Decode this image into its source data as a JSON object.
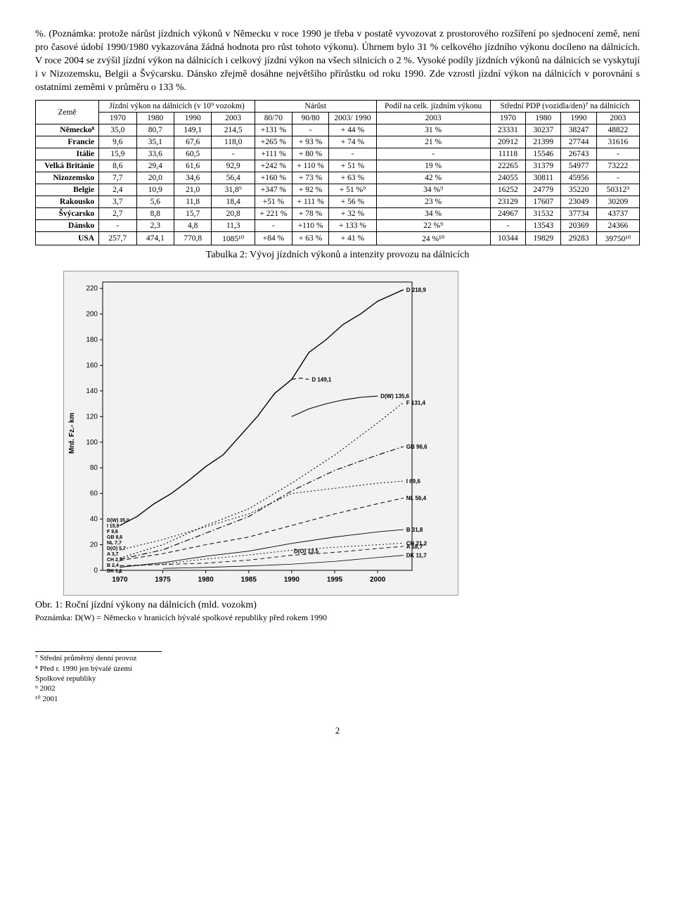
{
  "paragraph": "%. (Poznámka: protože nárůst jízdních výkonů v Německu v roce 1990 je třeba v postatě vyvozovat z prostorového rozšíření po sjednocení země, není pro časové údobí 1990/1980 vykazována žádná hodnota pro růst tohoto výkonu). Úhrnem bylo 31 % celkového jízdního výkonu docíleno na dálnicích. V roce 2004 se zvýšil jízdní výkon na dálnicích i celkový jízdní výkon na všech silnicích o 2 %. Vysoké podíly jízdních výkonů na dálnicích se vyskytují i v Nizozemsku, Belgii a Švýcarsku. Dánsko zřejmě dosáhne největšího přírůstku od roku 1990. Zde vzrostl jízdní výkon na dálnicích v porovnání s ostatními zeměmi v průměru o 133 %.",
  "table": {
    "head": {
      "country": "Země",
      "group1": "Jízdní výkon na dálnicích (v 10⁹ vozokm)",
      "group2": "Nárůst",
      "group3": "Podíl na celk. jízdním výkonu",
      "group4": "Střední PDP (vozidla/den)⁷ na dálnicích",
      "sub": [
        "1970",
        "1980",
        "1990",
        "2003",
        "80/70",
        "90/80",
        "2003/ 1990",
        "2003",
        "1970",
        "1980",
        "1990",
        "2003"
      ]
    },
    "rows": [
      {
        "c": "Německo⁸",
        "v": [
          "35,0",
          "80,7",
          "149,1",
          "214,5",
          "+131 %",
          "-",
          "+ 44 %",
          "31 %",
          "23331",
          "30237",
          "38247",
          "48822"
        ]
      },
      {
        "c": "Francie",
        "v": [
          "9,6",
          "35,1",
          "67,6",
          "118,0",
          "+265 %",
          "+ 93 %",
          "+ 74 %",
          "21 %",
          "20912",
          "21399",
          "27744",
          "31616"
        ]
      },
      {
        "c": "Itálie",
        "v": [
          "15,9",
          "33,6",
          "60,5",
          "-",
          "+111 %",
          "+ 80 %",
          "-",
          "-",
          "11118",
          "15546",
          "26743",
          "-"
        ]
      },
      {
        "c": "Velká Británie",
        "v": [
          "8,6",
          "29,4",
          "61,6",
          "92,9",
          "+242 %",
          "+ 110 %",
          "+ 51 %",
          "19 %",
          "22265",
          "31379",
          "54977",
          "73222"
        ]
      },
      {
        "c": "Nizozemsko",
        "v": [
          "7,7",
          "20,0",
          "34,6",
          "56,4",
          "+160 %",
          "+ 73 %",
          "+ 63 %",
          "42 %",
          "24055",
          "30811",
          "45956",
          "-"
        ]
      },
      {
        "c": "Belgie",
        "v": [
          "2,4",
          "10,9",
          "21,0",
          "31,8⁹",
          "+347 %",
          "+ 92 %",
          "+ 51 %⁹",
          "34 %⁹",
          "16252",
          "24779",
          "35220",
          "50312⁹"
        ]
      },
      {
        "c": "Rakousko",
        "v": [
          "3,7",
          "5,6",
          "11,8",
          "18,4",
          "+51 %",
          "+ 111 %",
          "+ 56 %",
          "23 %",
          "23129",
          "17607",
          "23049",
          "30209"
        ]
      },
      {
        "c": "Švýcarsko",
        "v": [
          "2,7",
          "8,8",
          "15,7",
          "20,8",
          "+ 221 %",
          "+ 78 %",
          "+ 32 %",
          "34 %",
          "24967",
          "31532",
          "37734",
          "43737"
        ]
      },
      {
        "c": "Dánsko",
        "v": [
          "-",
          "2,3",
          "4,8",
          "11,3",
          "-",
          "+110 %",
          "+ 133 %",
          "22 %⁹",
          "-",
          "13543",
          "20369",
          "24366"
        ]
      },
      {
        "c": "USA",
        "v": [
          "257,7",
          "474,1",
          "770,8",
          "1085¹⁰",
          "+84 %",
          "+ 63 %",
          "+ 41 %",
          "24 %¹⁰",
          "10344",
          "19829",
          "29283",
          "39750¹⁰"
        ]
      }
    ],
    "caption": "Tabulka 2: Vývoj jízdních výkonů a intenzity provozu na dálnicích"
  },
  "chart": {
    "type": "line",
    "background_color": "#f2f2f2",
    "axis_color": "#000000",
    "tick_fontsize": 10,
    "label_fontsize": 10,
    "ylabel": "Mrd. Fz.- km",
    "xlim": [
      1968,
      2004
    ],
    "ylim": [
      0,
      225
    ],
    "yticks": [
      0,
      20,
      40,
      60,
      80,
      100,
      120,
      140,
      160,
      180,
      200,
      220
    ],
    "xticks": [
      1970,
      1975,
      1980,
      1985,
      1990,
      1995,
      2000
    ],
    "series": [
      {
        "name": "D",
        "label_end": "D 218,9",
        "style": "solid",
        "width": 1.4,
        "color": "#000",
        "points": [
          [
            1970,
            35
          ],
          [
            1972,
            42
          ],
          [
            1974,
            52
          ],
          [
            1976,
            60
          ],
          [
            1978,
            70
          ],
          [
            1980,
            81
          ],
          [
            1982,
            90
          ],
          [
            1984,
            105
          ],
          [
            1986,
            120
          ],
          [
            1988,
            138
          ],
          [
            1990,
            149
          ],
          [
            1992,
            170
          ],
          [
            1994,
            180
          ],
          [
            1996,
            192
          ],
          [
            1998,
            200
          ],
          [
            2000,
            210
          ],
          [
            2002,
            216
          ],
          [
            2003,
            219
          ]
        ]
      },
      {
        "name": "D149",
        "label_end": "D 149,1",
        "style": "dash",
        "width": 1.1,
        "color": "#000",
        "points": [
          [
            1990,
            149
          ],
          [
            1991,
            150
          ],
          [
            1992,
            149
          ]
        ]
      },
      {
        "name": "D(W)",
        "label_end": "D(W) 135,6",
        "style": "solid",
        "width": 1.1,
        "color": "#000",
        "points": [
          [
            1990,
            120
          ],
          [
            1992,
            126
          ],
          [
            1994,
            130
          ],
          [
            1996,
            133
          ],
          [
            1998,
            135
          ],
          [
            2000,
            136
          ]
        ]
      },
      {
        "name": "F",
        "label_end": "F 131,4",
        "style": "dot",
        "width": 1.1,
        "color": "#000",
        "points": [
          [
            1970,
            9.6
          ],
          [
            1975,
            20
          ],
          [
            1980,
            35
          ],
          [
            1985,
            48
          ],
          [
            1990,
            68
          ],
          [
            1995,
            90
          ],
          [
            2000,
            115
          ],
          [
            2003,
            131
          ]
        ]
      },
      {
        "name": "GB",
        "label_end": "GB 96,6",
        "style": "dashdot",
        "width": 1.1,
        "color": "#000",
        "points": [
          [
            1970,
            8.6
          ],
          [
            1975,
            16
          ],
          [
            1980,
            29
          ],
          [
            1985,
            42
          ],
          [
            1990,
            62
          ],
          [
            1995,
            78
          ],
          [
            2000,
            90
          ],
          [
            2003,
            96.6
          ]
        ]
      },
      {
        "name": "I",
        "label_end": "I 69,6",
        "style": "dot",
        "width": 1.0,
        "color": "#000",
        "points": [
          [
            1970,
            15.9
          ],
          [
            1975,
            24
          ],
          [
            1980,
            34
          ],
          [
            1985,
            44
          ],
          [
            1990,
            60
          ],
          [
            1995,
            64
          ],
          [
            2000,
            68
          ],
          [
            2003,
            69.6
          ]
        ]
      },
      {
        "name": "NL",
        "label_end": "NL 56,4",
        "style": "dash",
        "width": 1.0,
        "color": "#000",
        "points": [
          [
            1970,
            7.7
          ],
          [
            1975,
            13
          ],
          [
            1980,
            20
          ],
          [
            1985,
            26
          ],
          [
            1990,
            35
          ],
          [
            1995,
            44
          ],
          [
            2000,
            52
          ],
          [
            2003,
            56.4
          ]
        ]
      },
      {
        "name": "B",
        "label_end": "B 31,8",
        "style": "solid",
        "width": 0.9,
        "color": "#000",
        "points": [
          [
            1970,
            2.4
          ],
          [
            1975,
            6
          ],
          [
            1980,
            11
          ],
          [
            1985,
            15
          ],
          [
            1990,
            21
          ],
          [
            1995,
            26
          ],
          [
            2000,
            30
          ],
          [
            2003,
            31.8
          ]
        ]
      },
      {
        "name": "CH",
        "label_end": "CH 21,2",
        "style": "dot",
        "width": 0.9,
        "color": "#000",
        "points": [
          [
            1970,
            2.7
          ],
          [
            1975,
            5
          ],
          [
            1980,
            8.8
          ],
          [
            1985,
            12
          ],
          [
            1990,
            15.7
          ],
          [
            1995,
            18
          ],
          [
            2000,
            20
          ],
          [
            2003,
            21.2
          ]
        ]
      },
      {
        "name": "A",
        "label_end": "A 18,7",
        "style": "dash",
        "width": 0.9,
        "color": "#000",
        "points": [
          [
            1970,
            3.7
          ],
          [
            1975,
            4.5
          ],
          [
            1980,
            5.6
          ],
          [
            1985,
            8
          ],
          [
            1990,
            11.8
          ],
          [
            1995,
            14
          ],
          [
            2000,
            17
          ],
          [
            2003,
            18.7
          ]
        ]
      },
      {
        "name": "DK",
        "label_end": "DK 11,7",
        "style": "solid",
        "width": 0.8,
        "color": "#000",
        "points": [
          [
            1975,
            1.5
          ],
          [
            1980,
            2.3
          ],
          [
            1985,
            3.4
          ],
          [
            1990,
            4.8
          ],
          [
            1995,
            7
          ],
          [
            2000,
            10
          ],
          [
            2003,
            11.7
          ]
        ]
      }
    ],
    "legend1970": [
      {
        "t": "D(W)",
        "v": "35,0"
      },
      {
        "t": "I",
        "v": "15,9"
      },
      {
        "t": "F",
        "v": "9,6"
      },
      {
        "t": "GB",
        "v": "8,6"
      },
      {
        "t": "NL",
        "v": "7,7"
      },
      {
        "t": "D(O)",
        "v": "5,7"
      },
      {
        "t": "A",
        "v": "3,7"
      },
      {
        "t": "CH",
        "v": "2,7"
      },
      {
        "t": "B",
        "v": "2,4"
      },
      {
        "t": "DK",
        "v": "1,1"
      }
    ],
    "mid_label": "D(O) 13,5"
  },
  "fig_caption": "Obr. 1: Roční jízdní výkony na dálnicích (mld. vozokm)",
  "fig_note": "Poznámka: D(W) = Německo v hranicích bývalé spolkové republiky před rokem 1990",
  "footnotes": [
    "⁷ Střední průměrný denní provoz",
    "⁸ Před r. 1990 jen bývalé území Spolkové republiky",
    "⁹ 2002",
    "¹⁰ 2001"
  ],
  "page_number": "2"
}
